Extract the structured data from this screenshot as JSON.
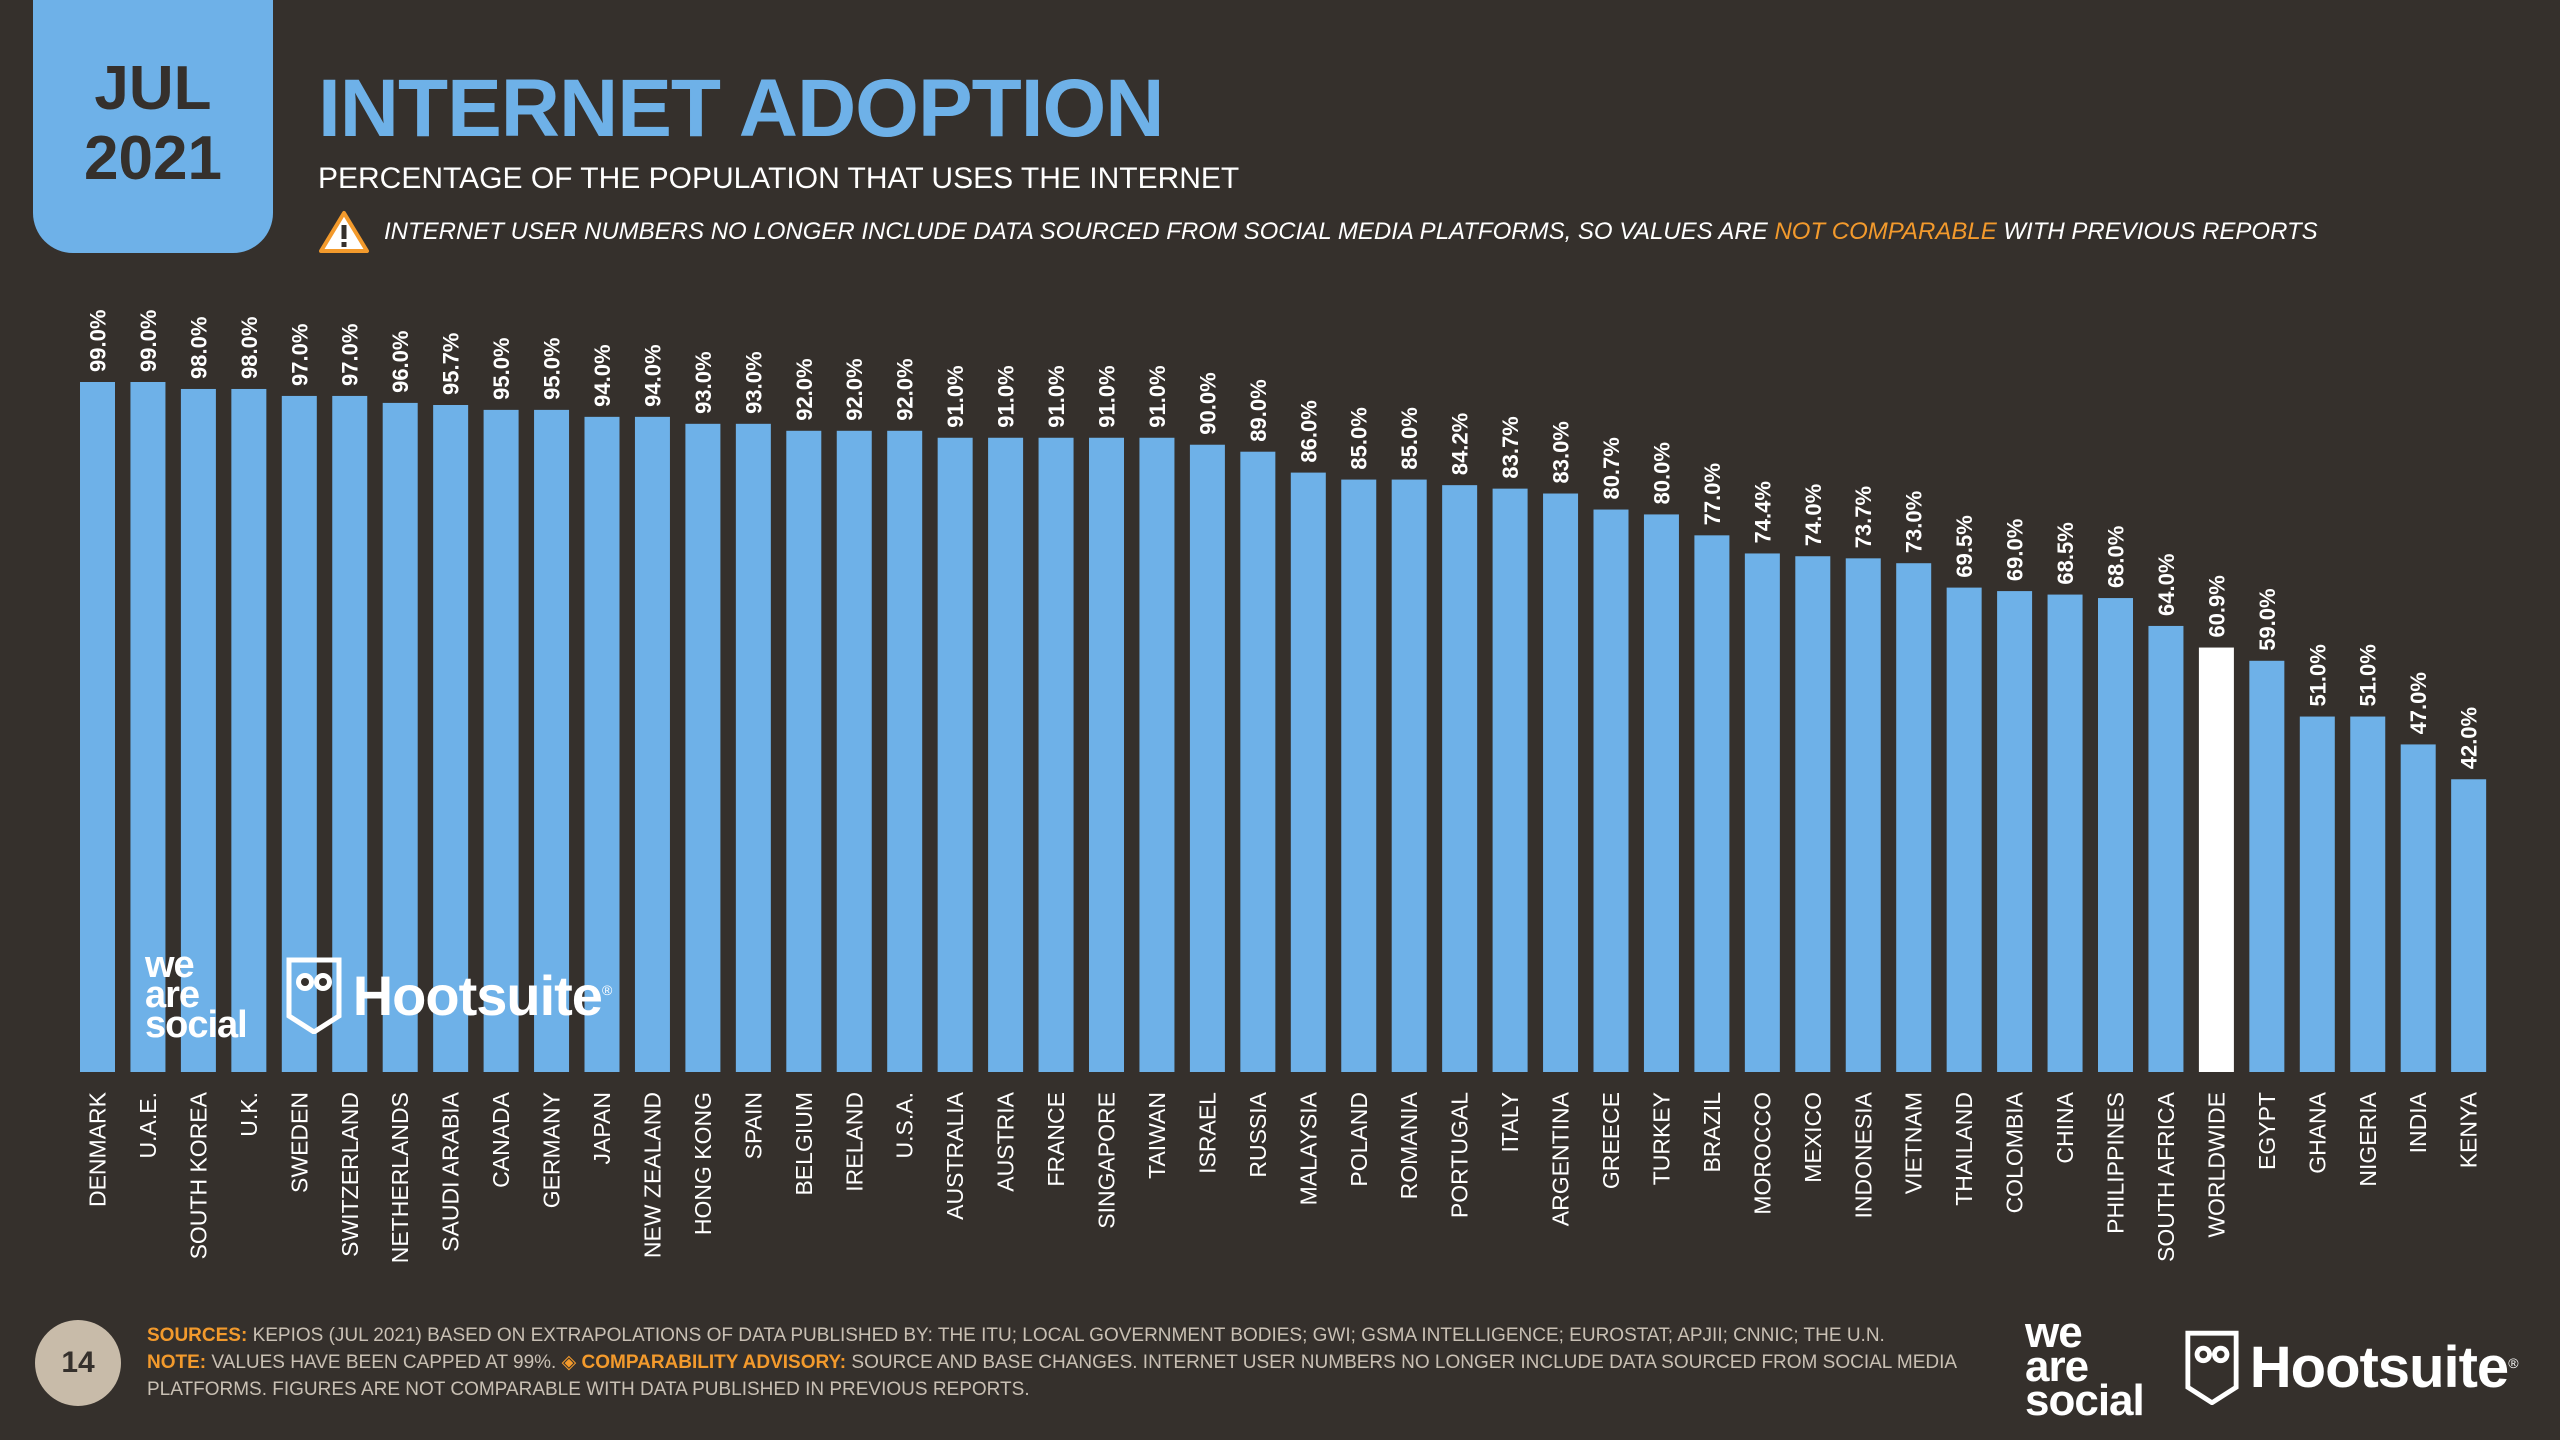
{
  "header": {
    "date_month": "JUL",
    "date_year": "2021",
    "title": "INTERNET ADOPTION",
    "subtitle": "PERCENTAGE OF THE POPULATION THAT USES THE INTERNET",
    "warning_pre": "INTERNET USER NUMBERS NO LONGER INCLUDE DATA SOURCED FROM SOCIAL MEDIA PLATFORMS, SO VALUES ARE ",
    "warning_highlight": "NOT COMPARABLE",
    "warning_post": " WITH PREVIOUS REPORTS",
    "warning_icon": "warning-triangle-icon"
  },
  "brand": {
    "wearesocial_line1": "we",
    "wearesocial_line2": "are",
    "wearesocial_line3": "social",
    "hootsuite": "Hootsuite",
    "registered": "®",
    "owl_icon": "owl-icon"
  },
  "footer": {
    "page_number": "14",
    "sources_label": "SOURCES:",
    "sources_text": " KEPIOS (JUL 2021) BASED ON EXTRAPOLATIONS OF DATA PUBLISHED BY: THE ITU; LOCAL GOVERNMENT BODIES; GWI; GSMA INTELLIGENCE; EUROSTAT; APJII; CNNIC; THE U.N.",
    "note_label": "NOTE:",
    "note_text": " VALUES HAVE BEEN CAPPED AT 99%. ",
    "advisory_label": "◈ COMPARABILITY ADVISORY:",
    "advisory_text": " SOURCE AND BASE CHANGES. INTERNET USER NUMBERS NO LONGER INCLUDE DATA SOURCED FROM SOCIAL MEDIA PLATFORMS. FIGURES ARE NOT COMPARABLE WITH DATA PUBLISHED IN PREVIOUS REPORTS."
  },
  "colors": {
    "background": "#35302c",
    "bar": "#6eb1e8",
    "highlight_bar": "#ffffff",
    "accent": "#f39a2c"
  },
  "chart_data": {
    "type": "bar",
    "title": "INTERNET ADOPTION",
    "subtitle": "PERCENTAGE OF THE POPULATION THAT USES THE INTERNET",
    "ylim": [
      0,
      100
    ],
    "grid": false,
    "highlight_category": "WORLDWIDE",
    "categories": [
      "DENMARK",
      "U.A.E.",
      "SOUTH KOREA",
      "U.K.",
      "SWEDEN",
      "SWITZERLAND",
      "NETHERLANDS",
      "SAUDI ARABIA",
      "CANADA",
      "GERMANY",
      "JAPAN",
      "NEW ZEALAND",
      "HONG KONG",
      "SPAIN",
      "BELGIUM",
      "IRELAND",
      "U.S.A.",
      "AUSTRALIA",
      "AUSTRIA",
      "FRANCE",
      "SINGAPORE",
      "TAIWAN",
      "ISRAEL",
      "RUSSIA",
      "MALAYSIA",
      "POLAND",
      "ROMANIA",
      "PORTUGAL",
      "ITALY",
      "ARGENTINA",
      "GREECE",
      "TURKEY",
      "BRAZIL",
      "MOROCCO",
      "MEXICO",
      "INDONESIA",
      "VIETNAM",
      "THAILAND",
      "COLOMBIA",
      "CHINA",
      "PHILIPPINES",
      "SOUTH AFRICA",
      "WORLDWIDE",
      "EGYPT",
      "GHANA",
      "NIGERIA",
      "INDIA",
      "KENYA"
    ],
    "values": [
      99.0,
      99.0,
      98.0,
      98.0,
      97.0,
      97.0,
      96.0,
      95.7,
      95.0,
      95.0,
      94.0,
      94.0,
      93.0,
      93.0,
      92.0,
      92.0,
      92.0,
      91.0,
      91.0,
      91.0,
      91.0,
      91.0,
      90.0,
      89.0,
      86.0,
      85.0,
      85.0,
      84.2,
      83.7,
      83.0,
      80.7,
      80.0,
      77.0,
      74.4,
      74.0,
      73.7,
      73.0,
      69.5,
      69.0,
      68.5,
      68.0,
      64.0,
      60.9,
      59.0,
      51.0,
      51.0,
      47.0,
      42.0
    ],
    "value_labels": [
      "99.0%",
      "99.0%",
      "98.0%",
      "98.0%",
      "97.0%",
      "97.0%",
      "96.0%",
      "95.7%",
      "95.0%",
      "95.0%",
      "94.0%",
      "94.0%",
      "93.0%",
      "93.0%",
      "92.0%",
      "92.0%",
      "92.0%",
      "91.0%",
      "91.0%",
      "91.0%",
      "91.0%",
      "91.0%",
      "90.0%",
      "89.0%",
      "86.0%",
      "85.0%",
      "85.0%",
      "84.2%",
      "83.7%",
      "83.0%",
      "80.7%",
      "80.0%",
      "77.0%",
      "74.4%",
      "74.0%",
      "73.7%",
      "73.0%",
      "69.5%",
      "69.0%",
      "68.5%",
      "68.0%",
      "64.0%",
      "60.9%",
      "59.0%",
      "51.0%",
      "51.0%",
      "47.0%",
      "42.0%"
    ]
  }
}
